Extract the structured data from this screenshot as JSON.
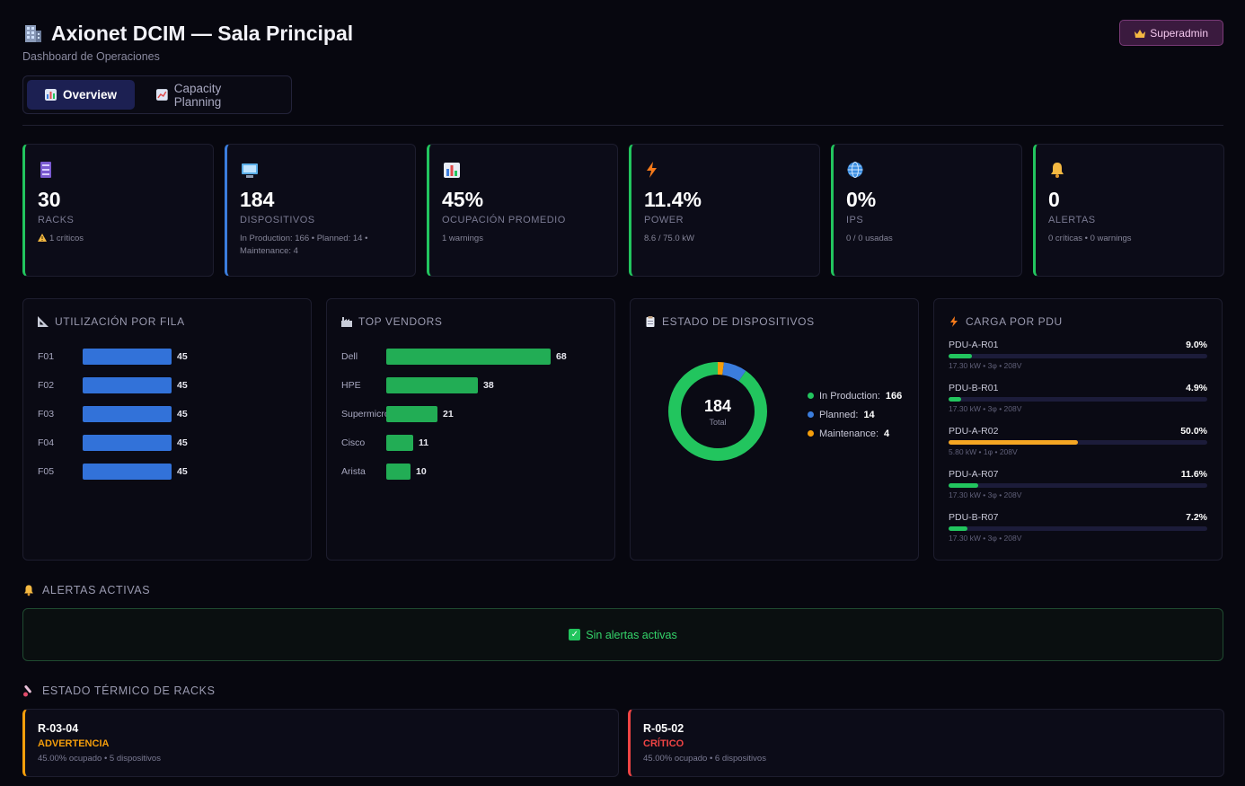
{
  "header": {
    "title": "Axionet DCIM — Sala Principal",
    "subtitle": "Dashboard de Operaciones",
    "role_button": "Superadmin"
  },
  "tabs": [
    {
      "label": "Overview",
      "active": true,
      "icon": "bar-chart-icon"
    },
    {
      "label": "Capacity Planning",
      "active": false,
      "icon": "trend-chart-icon"
    }
  ],
  "stats": [
    {
      "value": "30",
      "label": "RACKS",
      "sub": "1 críticos",
      "icon": "rack-icon",
      "accent": "#22c55e",
      "warning": true
    },
    {
      "value": "184",
      "label": "DISPOSITIVOS",
      "sub": "In Production: 166 • Planned: 14 • Maintenance: 4",
      "icon": "computer-icon",
      "accent": "#3b7ddd"
    },
    {
      "value": "45%",
      "label": "OCUPACIÓN PROMEDIO",
      "sub": "1 warnings",
      "icon": "chart-icon",
      "accent": "#22c55e"
    },
    {
      "value": "11.4%",
      "label": "POWER",
      "sub": "8.6 / 75.0 kW",
      "icon": "lightning-icon",
      "accent": "#22c55e"
    },
    {
      "value": "0%",
      "label": "IPS",
      "sub": "0 / 0 usadas",
      "icon": "globe-icon",
      "accent": "#22c55e"
    },
    {
      "value": "0",
      "label": "ALERTAS",
      "sub": "0 críticas • 0 warnings",
      "icon": "bell-icon",
      "accent": "#22c55e"
    }
  ],
  "panels": {
    "utilizacion": {
      "title": "UTILIZACIÓN POR FILA",
      "icon": "ruler-icon",
      "color": "#3272d9",
      "items": [
        {
          "label": "F01",
          "value": 45
        },
        {
          "label": "F02",
          "value": 45
        },
        {
          "label": "F03",
          "value": 45
        },
        {
          "label": "F04",
          "value": 45
        },
        {
          "label": "F05",
          "value": 45
        }
      ],
      "max": 100
    },
    "vendors": {
      "title": "TOP VENDORS",
      "icon": "factory-icon",
      "color": "#22ad55",
      "items": [
        {
          "label": "Dell",
          "value": 68
        },
        {
          "label": "HPE",
          "value": 38
        },
        {
          "label": "Supermicro",
          "value": 21
        },
        {
          "label": "Cisco",
          "value": 11
        },
        {
          "label": "Arista",
          "value": 10
        }
      ],
      "max": 68
    },
    "estado": {
      "title": "ESTADO DE DISPOSITIVOS",
      "icon": "clipboard-icon",
      "total": "184",
      "total_label": "Total",
      "segments": [
        {
          "name": "In Production",
          "value": 166,
          "color": "#22c55e"
        },
        {
          "name": "Planned",
          "value": 14,
          "color": "#3b7ddd"
        },
        {
          "name": "Maintenance",
          "value": 4,
          "color": "#f59e0b"
        }
      ]
    },
    "pdu": {
      "title": "CARGA POR PDU",
      "icon": "lightning-icon",
      "items": [
        {
          "name": "PDU-A-R01",
          "pct": 9.0,
          "pct_label": "9.0%",
          "sub": "17.30 kW • 3φ • 208V",
          "color": "#22c55e"
        },
        {
          "name": "PDU-B-R01",
          "pct": 4.9,
          "pct_label": "4.9%",
          "sub": "17.30 kW • 3φ • 208V",
          "color": "#22c55e"
        },
        {
          "name": "PDU-A-R02",
          "pct": 50.0,
          "pct_label": "50.0%",
          "sub": "5.80 kW • 1φ • 208V",
          "color": "#f5a623"
        },
        {
          "name": "PDU-A-R07",
          "pct": 11.6,
          "pct_label": "11.6%",
          "sub": "17.30 kW • 3φ • 208V",
          "color": "#22c55e"
        },
        {
          "name": "PDU-B-R07",
          "pct": 7.2,
          "pct_label": "7.2%",
          "sub": "17.30 kW • 3φ • 208V",
          "color": "#22c55e"
        }
      ]
    }
  },
  "alerts": {
    "title": "ALERTAS ACTIVAS",
    "empty": "Sin alertas activas"
  },
  "thermal": {
    "title": "ESTADO TÉRMICO DE RACKS",
    "items": [
      {
        "rack": "R-03-04",
        "status": "ADVERTENCIA",
        "detail": "45.00% ocupado • 5 dispositivos",
        "level": "warning"
      },
      {
        "rack": "R-05-02",
        "status": "CRÍTICO",
        "detail": "45.00% ocupado • 6 dispositivos",
        "level": "critical"
      }
    ]
  }
}
